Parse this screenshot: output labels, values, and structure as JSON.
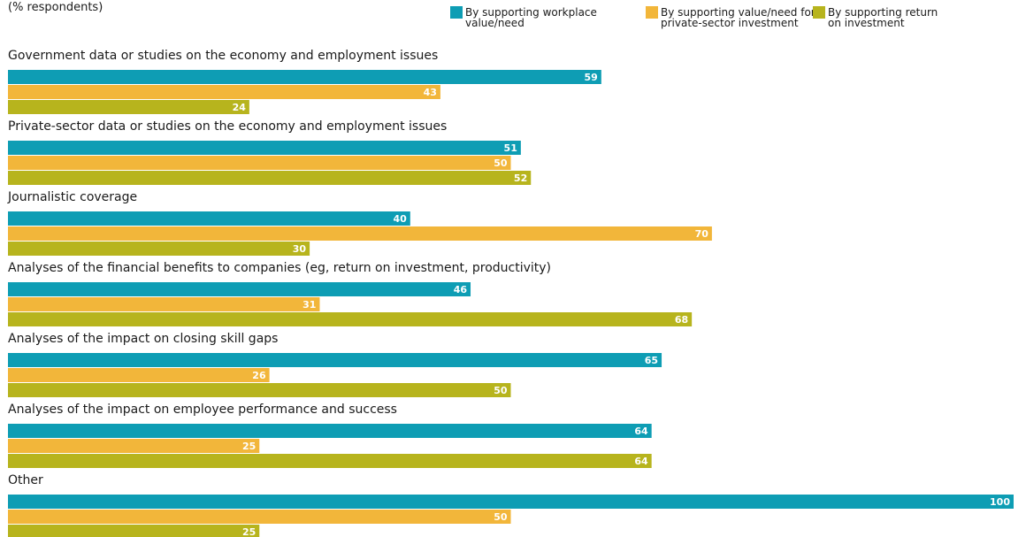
{
  "chart_data": {
    "type": "bar",
    "orientation": "horizontal",
    "subtitle": "(% respondents)",
    "categories": [
      "Government data or studies on the economy and employment issues",
      "Private-sector data or studies on the economy and employment issues",
      "Journalistic coverage",
      "Analyses of the financial benefits to companies (eg, return on investment, productivity)",
      "Analyses of the impact on closing skill gaps",
      "Analyses of the impact on employee performance and success",
      "Other"
    ],
    "series": [
      {
        "name": "By supporting workplace value/need",
        "legend_lines": [
          "By supporting workplace",
          "value/need"
        ],
        "color": "#0e9db4",
        "values": [
          59,
          51,
          40,
          46,
          65,
          64,
          100
        ]
      },
      {
        "name": "By supporting value/need for private-sector investment",
        "legend_lines": [
          "By supporting value/need for",
          "private-sector investment"
        ],
        "color": "#f2b63a",
        "values": [
          43,
          50,
          70,
          31,
          26,
          25,
          50
        ]
      },
      {
        "name": "By supporting return on investment",
        "legend_lines": [
          "By supporting return",
          "on investment"
        ],
        "color": "#b7b41d",
        "values": [
          24,
          52,
          30,
          68,
          50,
          64,
          25
        ]
      }
    ],
    "xlim": [
      0,
      100
    ],
    "legend_position": "top-right",
    "grid": false,
    "value_labels": true
  }
}
